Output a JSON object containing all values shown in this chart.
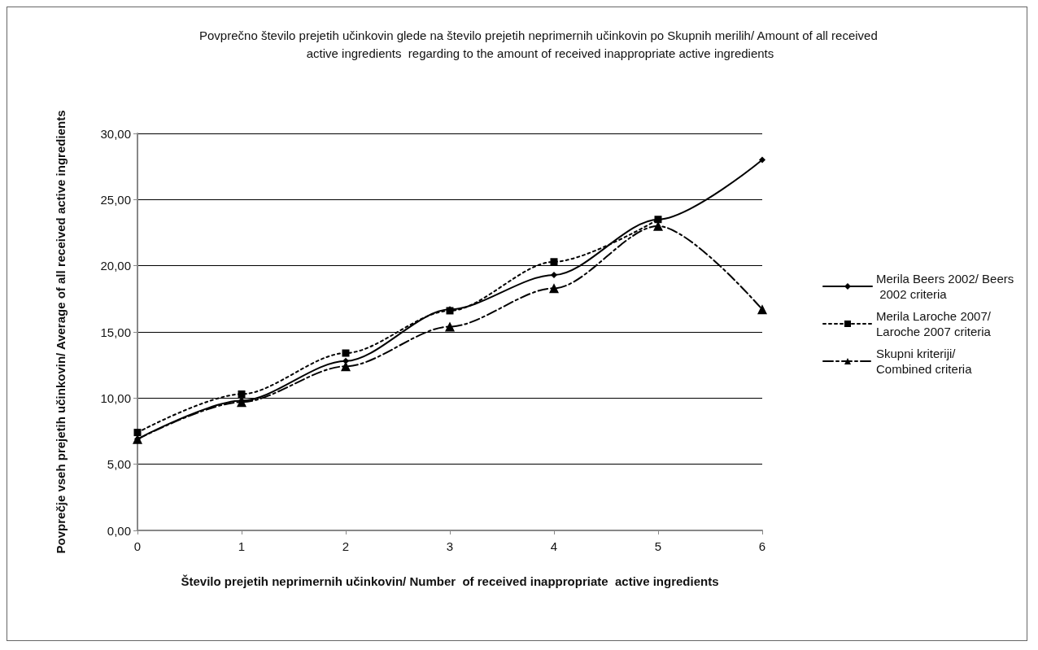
{
  "chart_data": {
    "type": "line",
    "title": "Povprečno število prejetih učinkovin glede na število prejetih neprimernih učinkovin po Skupnih merilih/ Amount of all received active ingredients  regarding to the amount of received inappropriate active ingredients",
    "xlabel": "Število prejetih neprimernih učinkovin/ Number  of received inappropriate  active ingredients",
    "ylabel": "Povprečje vseh prejetih učinkovin/ Average of all received active ingredients",
    "categories": [
      "0",
      "1",
      "2",
      "3",
      "4",
      "5",
      "6"
    ],
    "series": [
      {
        "name": "Merila Beers 2002/ Beers 2002 criteria",
        "color": "#000000",
        "marker": "diamond",
        "line_style": "solid",
        "values": [
          6.9,
          9.8,
          12.8,
          16.7,
          19.3,
          23.5,
          28.0
        ]
      },
      {
        "name": "Merila Laroche 2007/ Laroche 2007 criteria",
        "color": "#000000",
        "marker": "square",
        "line_style": "dotted",
        "values": [
          7.4,
          10.3,
          13.4,
          16.6,
          20.3,
          23.5,
          null
        ]
      },
      {
        "name": "Skupni kriteriji/ Combined criteria",
        "color": "#000000",
        "marker": "triangle",
        "line_style": "dashed",
        "values": [
          6.9,
          9.7,
          12.4,
          15.4,
          18.3,
          23.0,
          16.7
        ]
      }
    ],
    "ylim": [
      0,
      30
    ],
    "yticks": [
      {
        "value": 0,
        "label": "0,00"
      },
      {
        "value": 5,
        "label": "5,00"
      },
      {
        "value": 10,
        "label": "10,00"
      },
      {
        "value": 15,
        "label": "15,00"
      },
      {
        "value": 20,
        "label": "20,00"
      },
      {
        "value": 25,
        "label": "25,00"
      },
      {
        "value": 30,
        "label": "30,00"
      }
    ],
    "grid": "y",
    "legend": "right"
  }
}
